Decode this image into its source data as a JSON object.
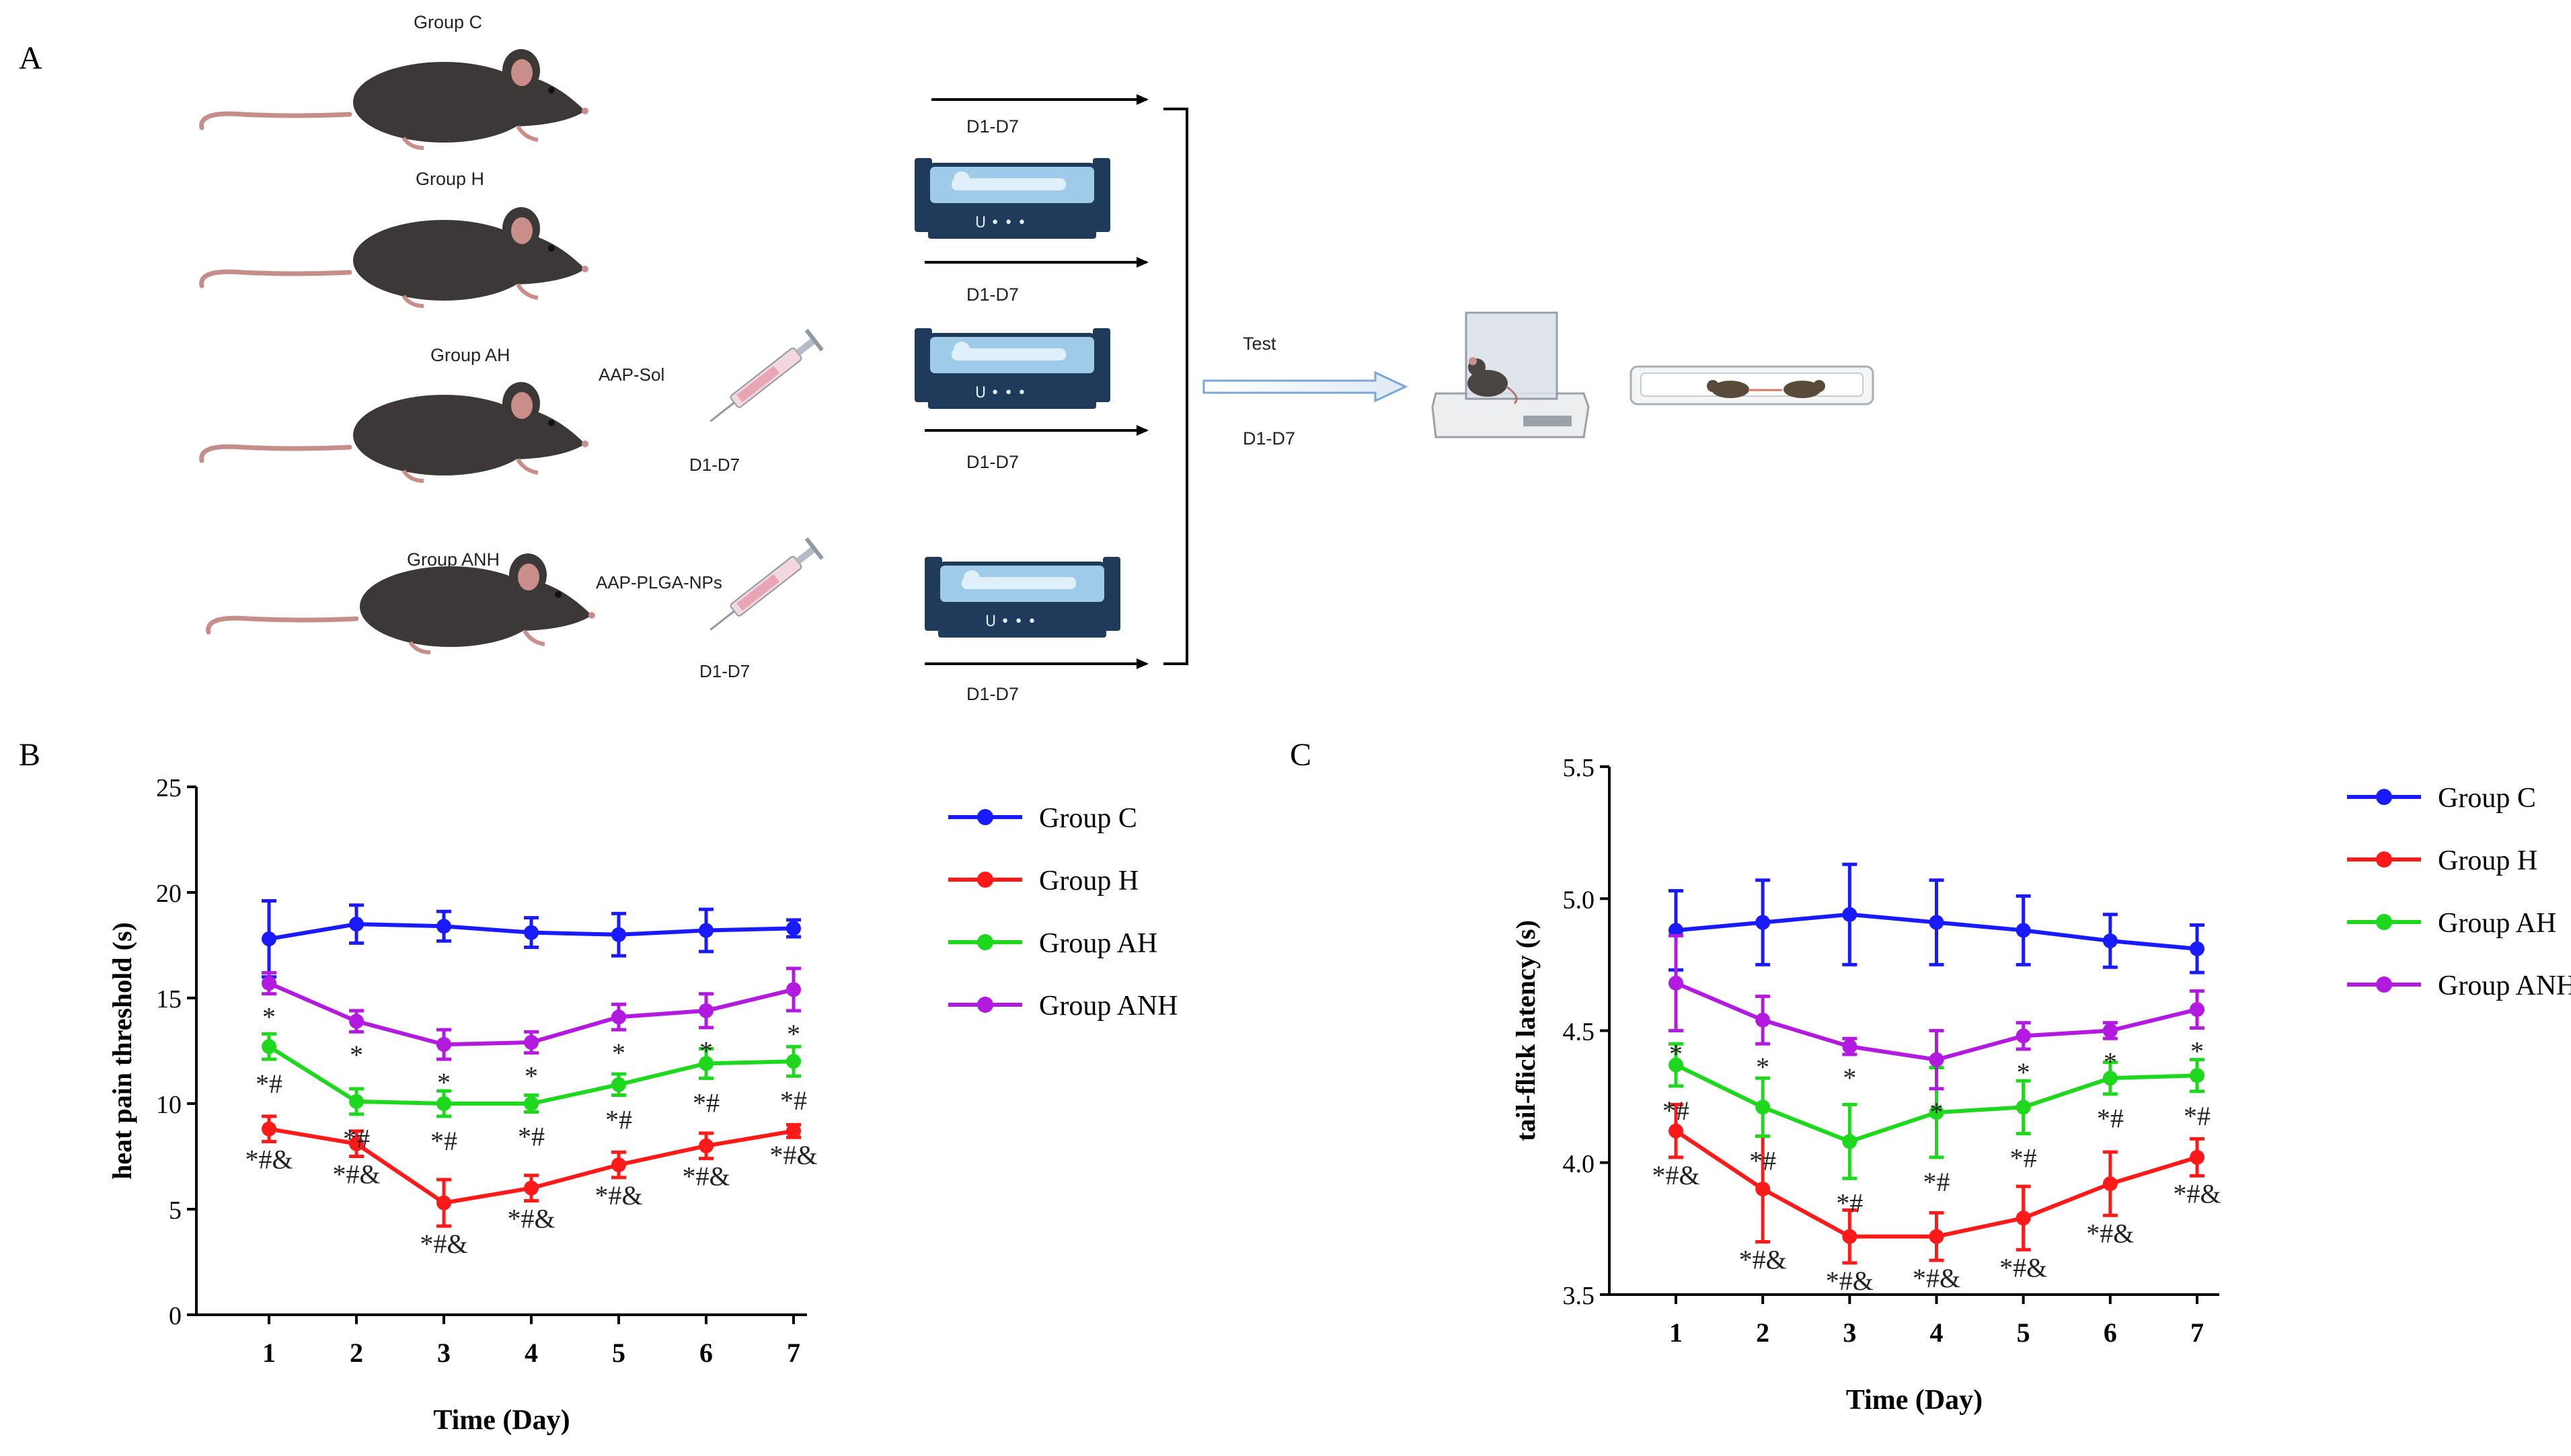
{
  "panel_labels": {
    "a": "A",
    "b": "B",
    "c": "C"
  },
  "schematic": {
    "groups": [
      {
        "name": "Group C",
        "injection": null,
        "day_label": "D1-D7",
        "box_day_label": null
      },
      {
        "name": "Group H",
        "injection": null,
        "day_label": "D1-D7",
        "box_day_label": null
      },
      {
        "name": "Group AH",
        "injection": "AAP-Sol",
        "injection_day": "D1-D7",
        "day_label": "D1-D7"
      },
      {
        "name": "Group ANH",
        "injection": "AAP-PLGA-NPs",
        "injection_day": "D1-D7",
        "day_label": "D1-D7"
      }
    ],
    "test_label": "Test",
    "test_day": "D1-D7",
    "icons": [
      "mouse-icon",
      "syringe-icon",
      "hypoxia-chamber-icon",
      "hot-plate-device-icon",
      "tail-flick-device-icon"
    ]
  },
  "colors": {
    "group_c": "#1a1aff",
    "group_h": "#ff1a1a",
    "group_ah": "#1ed81e",
    "group_anh": "#b21ae0",
    "axis": "#000000"
  },
  "chart_data": [
    {
      "type": "line",
      "panel": "B",
      "xlabel": "Time (Day)",
      "ylabel": "heat pain threshold (s)",
      "x": [
        1,
        2,
        3,
        4,
        5,
        6,
        7
      ],
      "xticks": [
        "1",
        "2",
        "3",
        "4",
        "5",
        "6",
        "7"
      ],
      "yticks": [
        "0",
        "5",
        "10",
        "15",
        "20",
        "25"
      ],
      "ylim": [
        0,
        25
      ],
      "legend_position": "right",
      "series": [
        {
          "name": "Group C",
          "color": "#1a1aff",
          "values": [
            17.8,
            18.5,
            18.4,
            18.1,
            18.0,
            18.2,
            18.3
          ],
          "errors": [
            1.8,
            0.9,
            0.7,
            0.7,
            1.0,
            1.0,
            0.4
          ],
          "annotations": []
        },
        {
          "name": "Group H",
          "color": "#ff1a1a",
          "values": [
            8.8,
            8.1,
            5.3,
            6.0,
            7.1,
            8.0,
            8.7
          ],
          "errors": [
            0.6,
            0.6,
            1.1,
            0.6,
            0.6,
            0.6,
            0.3
          ],
          "annotations": [
            "*#&",
            "*#&",
            "*#&",
            "*#&",
            "*#&",
            "*#&",
            "*#&"
          ]
        },
        {
          "name": "Group AH",
          "color": "#1ed81e",
          "values": [
            12.7,
            10.1,
            10.0,
            10.0,
            10.9,
            11.9,
            12.0
          ],
          "errors": [
            0.6,
            0.6,
            0.6,
            0.4,
            0.5,
            0.7,
            0.7
          ],
          "annotations": [
            "*#",
            "*#",
            "*#",
            "*#",
            "*#",
            "*#",
            "*#"
          ]
        },
        {
          "name": "Group ANH",
          "color": "#b21ae0",
          "values": [
            15.7,
            13.9,
            12.8,
            12.9,
            14.1,
            14.4,
            15.4
          ],
          "errors": [
            0.5,
            0.5,
            0.7,
            0.5,
            0.6,
            0.8,
            1.0
          ],
          "annotations": [
            "*",
            "*",
            "*",
            "*",
            "*",
            "*",
            "*"
          ]
        }
      ]
    },
    {
      "type": "line",
      "panel": "C",
      "xlabel": "Time (Day)",
      "ylabel": "tail-flick latency (s)",
      "x": [
        1,
        2,
        3,
        4,
        5,
        6,
        7
      ],
      "xticks": [
        "1",
        "2",
        "3",
        "4",
        "5",
        "6",
        "7"
      ],
      "yticks": [
        "3.5",
        "4.0",
        "4.5",
        "5.0",
        "5.5"
      ],
      "ylim": [
        3.5,
        5.5
      ],
      "legend_position": "right",
      "series": [
        {
          "name": "Group C",
          "color": "#1a1aff",
          "values": [
            4.88,
            4.91,
            4.94,
            4.91,
            4.88,
            4.84,
            4.81
          ],
          "errors": [
            0.15,
            0.16,
            0.19,
            0.16,
            0.13,
            0.1,
            0.09
          ],
          "annotations": []
        },
        {
          "name": "Group H",
          "color": "#ff1a1a",
          "values": [
            4.12,
            3.9,
            3.72,
            3.72,
            3.79,
            3.92,
            4.02
          ],
          "errors": [
            0.1,
            0.2,
            0.1,
            0.09,
            0.12,
            0.12,
            0.07
          ],
          "annotations": [
            "*#&",
            "*#&",
            "*#&",
            "*#&",
            "*#&",
            "*#&",
            "*#&"
          ]
        },
        {
          "name": "Group AH",
          "color": "#1ed81e",
          "values": [
            4.37,
            4.21,
            4.08,
            4.19,
            4.21,
            4.32,
            4.33
          ],
          "errors": [
            0.08,
            0.11,
            0.14,
            0.17,
            0.1,
            0.06,
            0.06
          ],
          "annotations": [
            "*#",
            "*#",
            "*#",
            "*#",
            "*#",
            "*#",
            "*#"
          ]
        },
        {
          "name": "Group ANH",
          "color": "#b21ae0",
          "values": [
            4.68,
            4.54,
            4.44,
            4.39,
            4.48,
            4.5,
            4.58
          ],
          "errors": [
            0.18,
            0.09,
            0.03,
            0.11,
            0.05,
            0.03,
            0.07
          ],
          "annotations": [
            "*",
            "*",
            "*",
            "*",
            "*",
            "*",
            "*"
          ]
        }
      ]
    }
  ]
}
